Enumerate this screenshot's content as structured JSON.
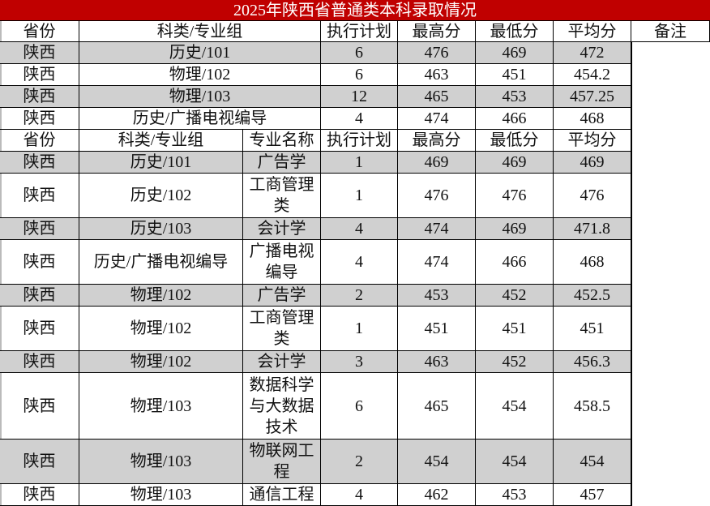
{
  "title": "2025年陕西省普通类本科录取情况",
  "colors": {
    "title_bg": "#c00000",
    "alt_row": "#d0d0d0"
  },
  "table1": {
    "headers": [
      "省份",
      "科类/专业组",
      "执行计划",
      "最高分",
      "最低分",
      "平均分",
      "备注"
    ],
    "rows": [
      [
        "陕西",
        "历史/101",
        "6",
        "476",
        "469",
        "472"
      ],
      [
        "陕西",
        "物理/102",
        "6",
        "463",
        "451",
        "454.2"
      ],
      [
        "陕西",
        "物理/103",
        "12",
        "465",
        "453",
        "457.25"
      ],
      [
        "陕西",
        "历史/广播电视编导",
        "4",
        "474",
        "466",
        "468"
      ]
    ]
  },
  "table2": {
    "headers": [
      "省份",
      "科类/专业组",
      "专业名称",
      "执行计划",
      "最高分",
      "最低分",
      "平均分"
    ],
    "rows": [
      [
        "陕西",
        "历史/101",
        "广告学",
        "1",
        "469",
        "469",
        "469"
      ],
      [
        "陕西",
        "历史/102",
        "工商管理类",
        "1",
        "476",
        "476",
        "476"
      ],
      [
        "陕西",
        "历史/103",
        "会计学",
        "4",
        "474",
        "469",
        "471.8"
      ],
      [
        "陕西",
        "历史/广播电视编导",
        "广播电视编导",
        "4",
        "474",
        "466",
        "468"
      ],
      [
        "陕西",
        "物理/102",
        "广告学",
        "2",
        "453",
        "452",
        "452.5"
      ],
      [
        "陕西",
        "物理/102",
        "工商管理类",
        "1",
        "451",
        "451",
        "451"
      ],
      [
        "陕西",
        "物理/102",
        "会计学",
        "3",
        "463",
        "452",
        "456.3"
      ],
      [
        "陕西",
        "物理/103",
        "数据科学与大数据技术",
        "6",
        "465",
        "454",
        "458.5"
      ],
      [
        "陕西",
        "物理/103",
        "物联网工程",
        "2",
        "454",
        "454",
        "454"
      ],
      [
        "陕西",
        "物理/103",
        "通信工程",
        "4",
        "462",
        "453",
        "457"
      ]
    ]
  }
}
